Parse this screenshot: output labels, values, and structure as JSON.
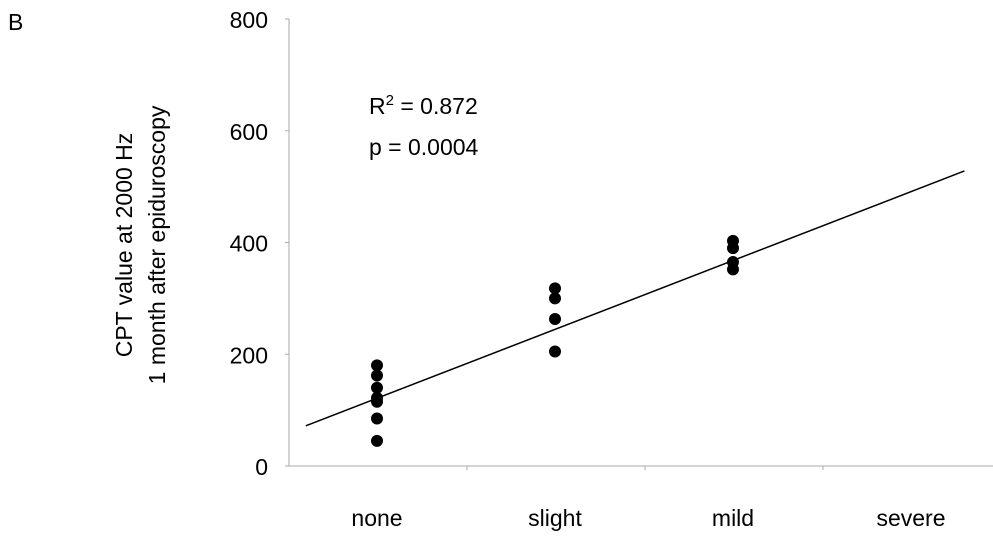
{
  "panel_label": "B",
  "chart_data": {
    "type": "scatter",
    "title": "",
    "xlabel": "",
    "ylabel_lines": [
      "CPT value at 2000 Hz",
      "1 month after epiduroscopy"
    ],
    "categories": [
      "none",
      "slight",
      "mild",
      "severe"
    ],
    "ylim": [
      0,
      800
    ],
    "yticks": [
      0,
      200,
      400,
      600,
      800
    ],
    "grid": false,
    "points": [
      {
        "x": "none",
        "y": 180
      },
      {
        "x": "none",
        "y": 162
      },
      {
        "x": "none",
        "y": 140
      },
      {
        "x": "none",
        "y": 122
      },
      {
        "x": "none",
        "y": 115
      },
      {
        "x": "none",
        "y": 85
      },
      {
        "x": "none",
        "y": 45
      },
      {
        "x": "slight",
        "y": 318
      },
      {
        "x": "slight",
        "y": 300
      },
      {
        "x": "slight",
        "y": 263
      },
      {
        "x": "slight",
        "y": 205
      },
      {
        "x": "mild",
        "y": 403
      },
      {
        "x": "mild",
        "y": 390
      },
      {
        "x": "mild",
        "y": 365
      },
      {
        "x": "mild",
        "y": 352
      }
    ],
    "regression_line": {
      "x_start": -0.4,
      "y_start": 72,
      "x_end": 3.3,
      "y_end": 528
    },
    "annotations": {
      "r2_prefix": "R",
      "r2_superscript": "2",
      "r2_value": " = 0.872",
      "p_text": "p = 0.0004"
    }
  }
}
